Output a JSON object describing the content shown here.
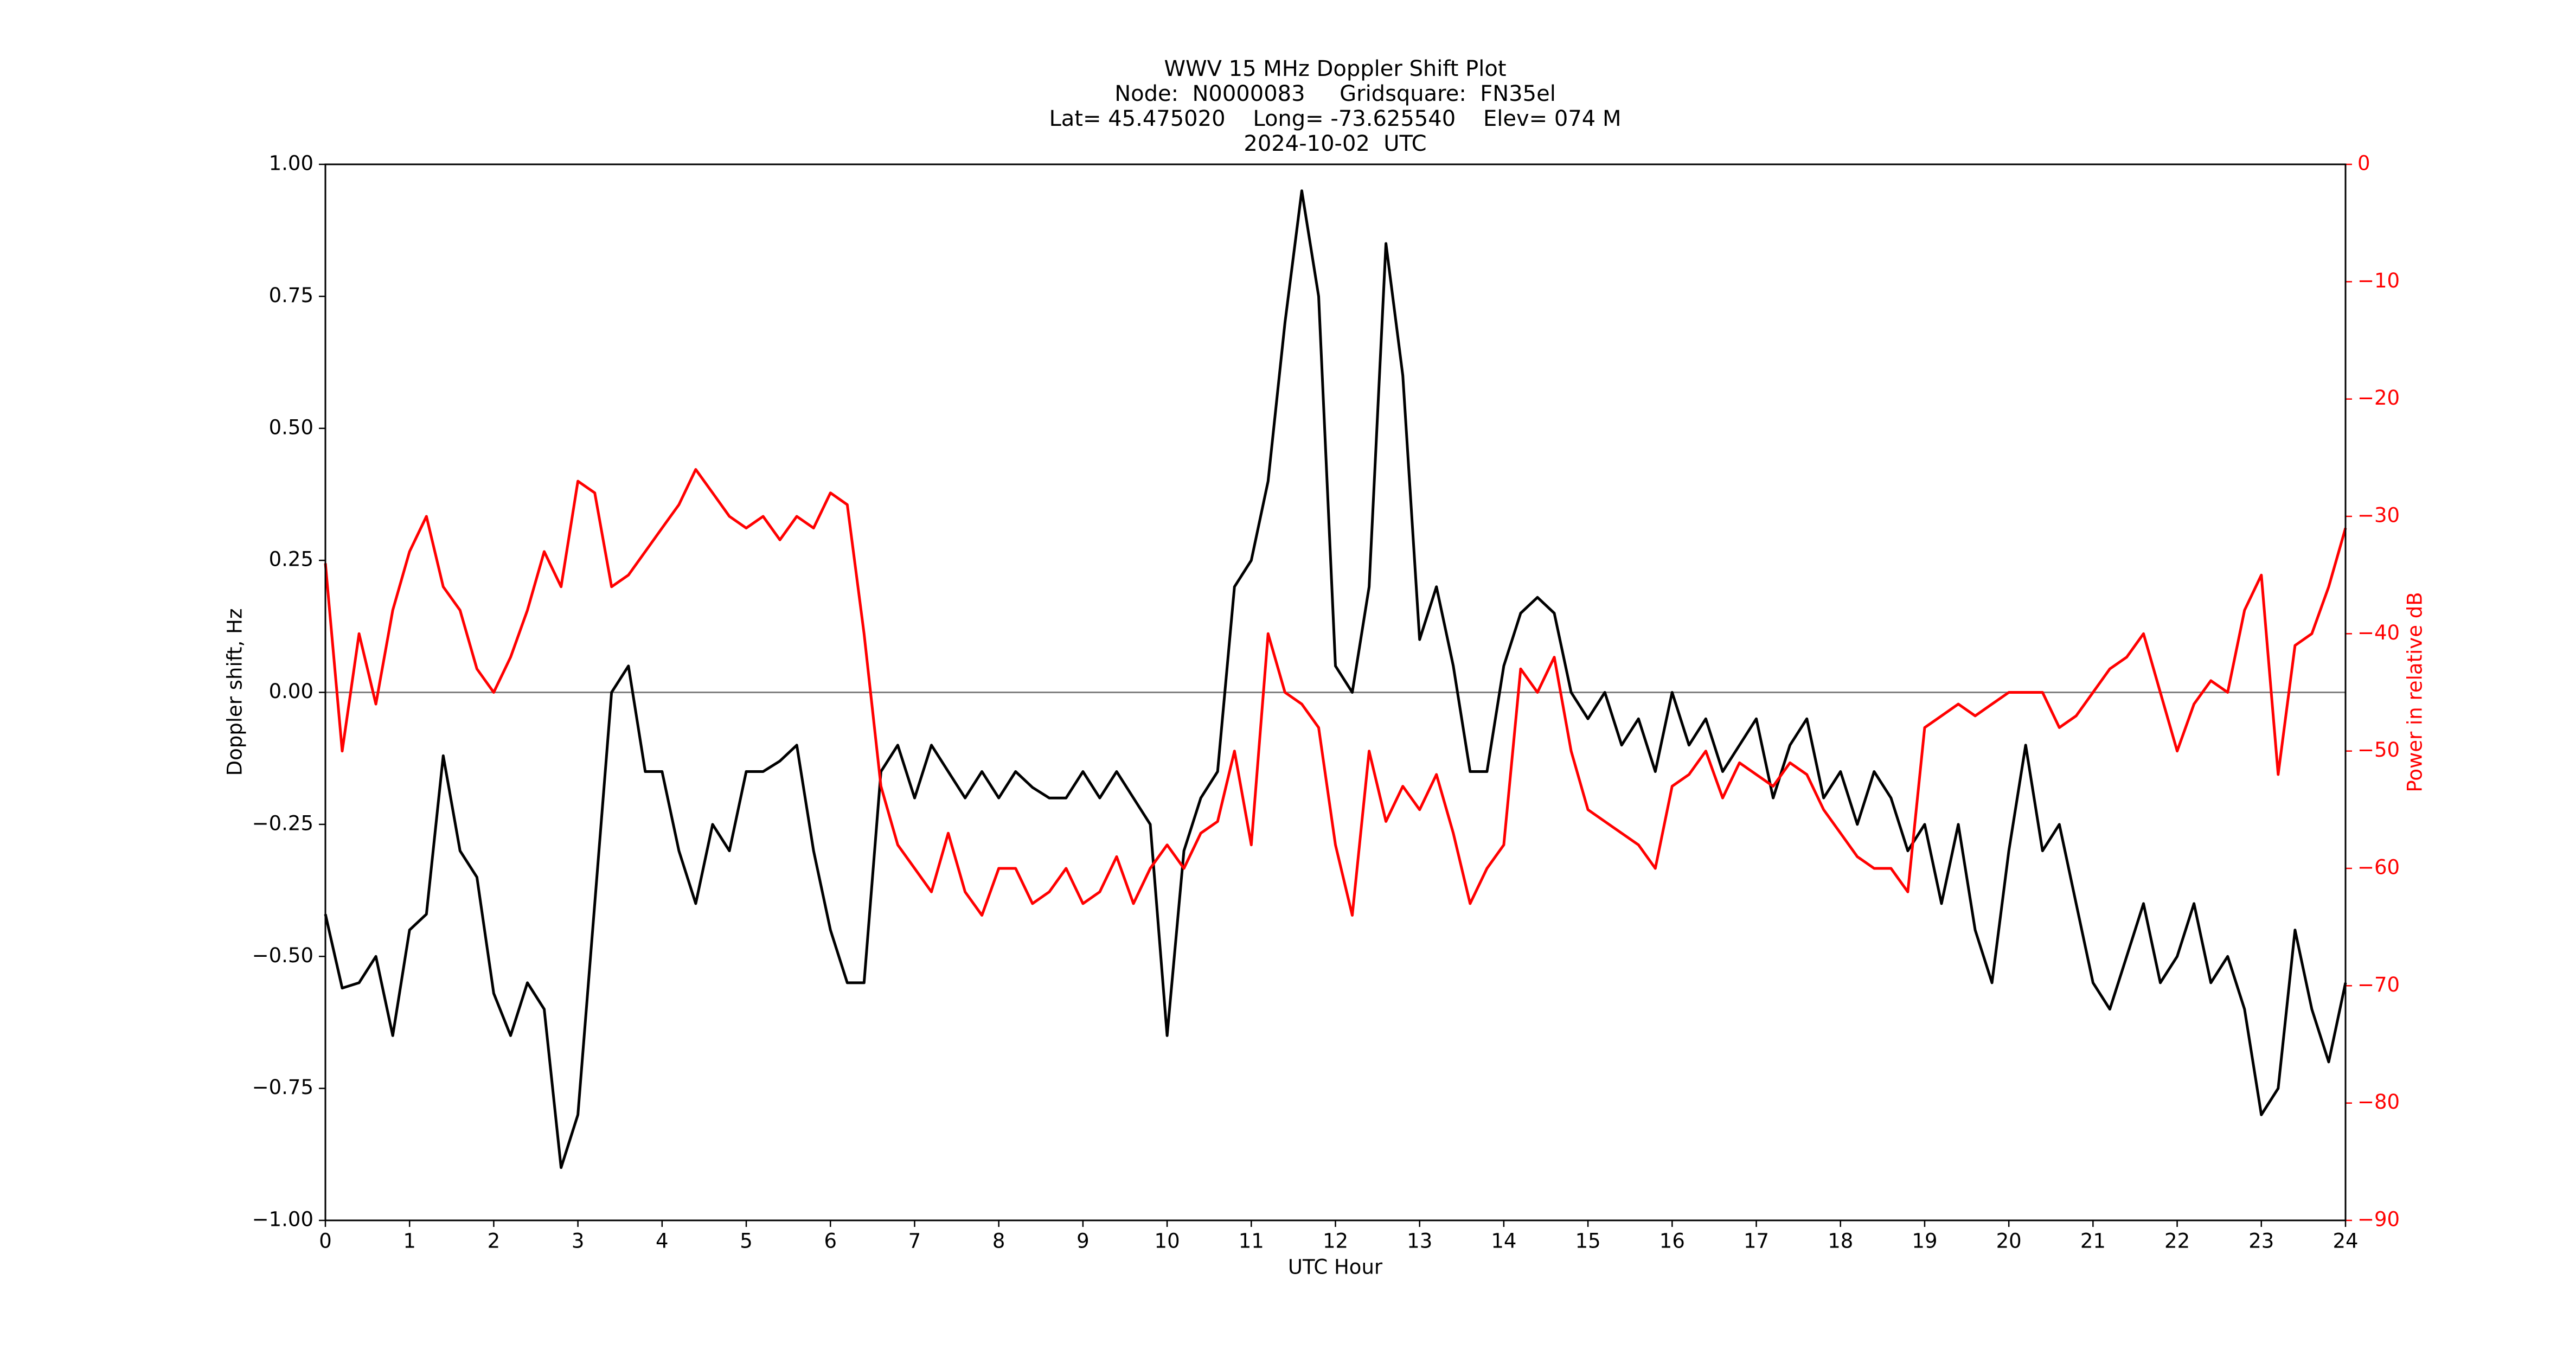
{
  "chart_data": {
    "type": "line",
    "title": [
      "WWV 15 MHz Doppler Shift Plot",
      "Node:  N0000083     Gridsquare:  FN35el",
      "Lat= 45.475020    Long= -73.625540    Elev= 074 M",
      "2024-10-02  UTC"
    ],
    "xlabel": "UTC Hour",
    "ylabel": "Doppler shift, Hz",
    "y2label": "Power in relative dB",
    "xlim": [
      0,
      24
    ],
    "xticks": [
      0,
      1,
      2,
      3,
      4,
      5,
      6,
      7,
      8,
      9,
      10,
      11,
      12,
      13,
      14,
      15,
      16,
      17,
      18,
      19,
      20,
      21,
      22,
      23,
      24
    ],
    "ylim": [
      -1,
      1
    ],
    "yticks": [
      {
        "value": -1,
        "label": "−1.00"
      },
      {
        "value": -0.75,
        "label": "−0.75"
      },
      {
        "value": -0.5,
        "label": "−0.50"
      },
      {
        "value": -0.25,
        "label": "−0.25"
      },
      {
        "value": 0,
        "label": "0.00"
      },
      {
        "value": 0.25,
        "label": "0.25"
      },
      {
        "value": 0.5,
        "label": "0.50"
      },
      {
        "value": 0.75,
        "label": "0.75"
      },
      {
        "value": 1,
        "label": "1.00"
      }
    ],
    "y2lim": [
      -90,
      0
    ],
    "y2ticks": [
      {
        "value": -90,
        "label": "−90"
      },
      {
        "value": -80,
        "label": "−80"
      },
      {
        "value": -70,
        "label": "−70"
      },
      {
        "value": -60,
        "label": "−60"
      },
      {
        "value": -50,
        "label": "−50"
      },
      {
        "value": -40,
        "label": "−40"
      },
      {
        "value": -30,
        "label": "−30"
      },
      {
        "value": -20,
        "label": "−20"
      },
      {
        "value": -10,
        "label": "−10"
      },
      0
    ],
    "x": [
      0,
      0.2,
      0.4,
      0.6,
      0.8,
      1,
      1.2,
      1.4,
      1.6,
      1.8,
      2,
      2.2,
      2.4,
      2.6,
      2.8,
      3,
      3.2,
      3.4,
      3.6,
      3.8,
      4,
      4.2,
      4.4,
      4.6,
      4.8,
      5,
      5.2,
      5.4,
      5.6,
      5.8,
      6,
      6.2,
      6.4,
      6.6,
      6.8,
      7,
      7.2,
      7.4,
      7.6,
      7.8,
      8,
      8.2,
      8.4,
      8.6,
      8.8,
      9,
      9.2,
      9.4,
      9.6,
      9.8,
      10,
      10.2,
      10.4,
      10.6,
      10.8,
      11,
      11.2,
      11.4,
      11.6,
      11.8,
      12,
      12.2,
      12.4,
      12.6,
      12.8,
      13,
      13.2,
      13.4,
      13.6,
      13.8,
      14,
      14.2,
      14.4,
      14.6,
      14.8,
      15,
      15.2,
      15.4,
      15.6,
      15.8,
      16,
      16.2,
      16.4,
      16.6,
      16.8,
      17,
      17.2,
      17.4,
      17.6,
      17.8,
      18,
      18.2,
      18.4,
      18.6,
      18.8,
      19,
      19.2,
      19.4,
      19.6,
      19.8,
      20,
      20.2,
      20.4,
      20.6,
      20.8,
      21,
      21.2,
      21.4,
      21.6,
      21.8,
      22,
      22.2,
      22.4,
      22.6,
      22.8,
      23,
      23.2,
      23.4,
      23.6,
      23.8,
      24
    ],
    "series": [
      {
        "color": "#000000",
        "values": [
          -0.42,
          -0.56,
          -0.55,
          -0.5,
          -0.65,
          -0.45,
          -0.42,
          -0.12,
          -0.3,
          -0.35,
          -0.57,
          -0.65,
          -0.55,
          -0.6,
          -0.9,
          -0.8,
          -0.4,
          0,
          0.05,
          -0.15,
          -0.15,
          -0.3,
          -0.4,
          -0.25,
          -0.3,
          -0.15,
          -0.15,
          -0.13,
          -0.1,
          -0.3,
          -0.45,
          -0.55,
          -0.55,
          -0.15,
          -0.1,
          -0.2,
          -0.1,
          -0.15,
          -0.2,
          -0.15,
          -0.2,
          -0.15,
          -0.18,
          -0.2,
          -0.2,
          -0.15,
          -0.2,
          -0.15,
          -0.2,
          -0.25,
          -0.65,
          -0.3,
          -0.2,
          -0.15,
          0.2,
          0.25,
          0.4,
          0.7,
          0.95,
          0.75,
          0.05,
          0,
          0.2,
          0.85,
          0.6,
          0.1,
          0.2,
          0.05,
          -0.15,
          -0.15,
          0.05,
          0.15,
          0.18,
          0.15,
          0,
          -0.05,
          0,
          -0.1,
          -0.05,
          -0.15,
          0,
          -0.1,
          -0.05,
          -0.15,
          -0.1,
          -0.05,
          -0.2,
          -0.1,
          -0.05,
          -0.2,
          -0.15,
          -0.25,
          -0.15,
          -0.2,
          -0.3,
          -0.25,
          -0.4,
          -0.25,
          -0.45,
          -0.55,
          -0.3,
          -0.1,
          -0.3,
          -0.25,
          -0.4,
          -0.55,
          -0.6,
          -0.5,
          -0.4,
          -0.55,
          -0.5,
          -0.4,
          -0.55,
          -0.5,
          -0.6,
          -0.8,
          -0.75,
          -0.45,
          -0.6,
          -0.7,
          -0.55
        ]
      },
      {
        "color": "#ff0000",
        "axis": "y2",
        "values": [
          -34,
          -50,
          -40,
          -46,
          -38,
          -33,
          -30,
          -36,
          -38,
          -43,
          -45,
          -42,
          -38,
          -33,
          -36,
          -27,
          -28,
          -36,
          -35,
          -33,
          -31,
          -29,
          -26,
          -28,
          -30,
          -31,
          -30,
          -32,
          -30,
          -31,
          -28,
          -29,
          -40,
          -53,
          -58,
          -60,
          -62,
          -57,
          -62,
          -64,
          -60,
          -60,
          -63,
          -62,
          -60,
          -63,
          -62,
          -59,
          -63,
          -60,
          -58,
          -60,
          -57,
          -56,
          -50,
          -58,
          -40,
          -45,
          -46,
          -48,
          -58,
          -64,
          -50,
          -56,
          -53,
          -55,
          -52,
          -57,
          -63,
          -60,
          -58,
          -43,
          -45,
          -42,
          -50,
          -55,
          -56,
          -57,
          -58,
          -60,
          -53,
          -52,
          -50,
          -54,
          -51,
          -52,
          -53,
          -51,
          -52,
          -55,
          -57,
          -59,
          -60,
          -60,
          -62,
          -48,
          -47,
          -46,
          -47,
          -46,
          -45,
          -45,
          -45,
          -48,
          -47,
          -45,
          -43,
          -42,
          -40,
          -45,
          -50,
          -46,
          -44,
          -45,
          -38,
          -35,
          -52,
          -41,
          -40,
          -36,
          -31
        ]
      }
    ]
  }
}
